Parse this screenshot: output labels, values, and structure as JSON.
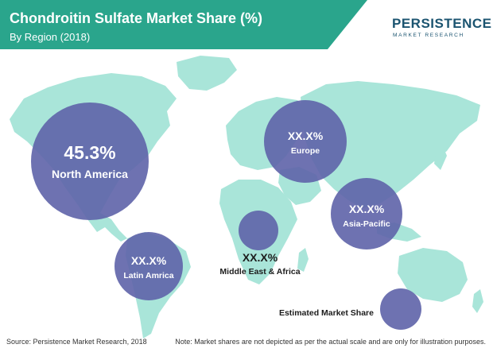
{
  "header": {
    "title": "Chondroitin Sulfate Market Share (%)",
    "subtitle": "By Region (2018)"
  },
  "logo": {
    "name": "PERSISTENCE",
    "tagline": "MARKET RESEARCH"
  },
  "colors": {
    "header_band": "#2aa58c",
    "map_land": "#a9e5d9",
    "bubble": "#5e63a8"
  },
  "chart_data": {
    "type": "bubble-map",
    "title": "Chondroitin Sulfate Market Share (%)",
    "subtitle": "By Region (2018)",
    "series": [
      {
        "region": "North America",
        "value_label": "45.3%",
        "value": 45.3
      },
      {
        "region": "Europe",
        "value_label": "XX.X%"
      },
      {
        "region": "Asia-Pacific",
        "value_label": "XX.X%"
      },
      {
        "region": "Latin Amrica",
        "value_label": "XX.X%"
      },
      {
        "region": "Middle East & Africa",
        "value_label": "XX.X%"
      }
    ],
    "legend": {
      "label": "Estimated Market Share"
    }
  },
  "footer": {
    "source": "Source: Persistence Market Research, 2018",
    "note": "Note: Market shares are not depicted as per the actual scale and are only for illustration purposes."
  }
}
